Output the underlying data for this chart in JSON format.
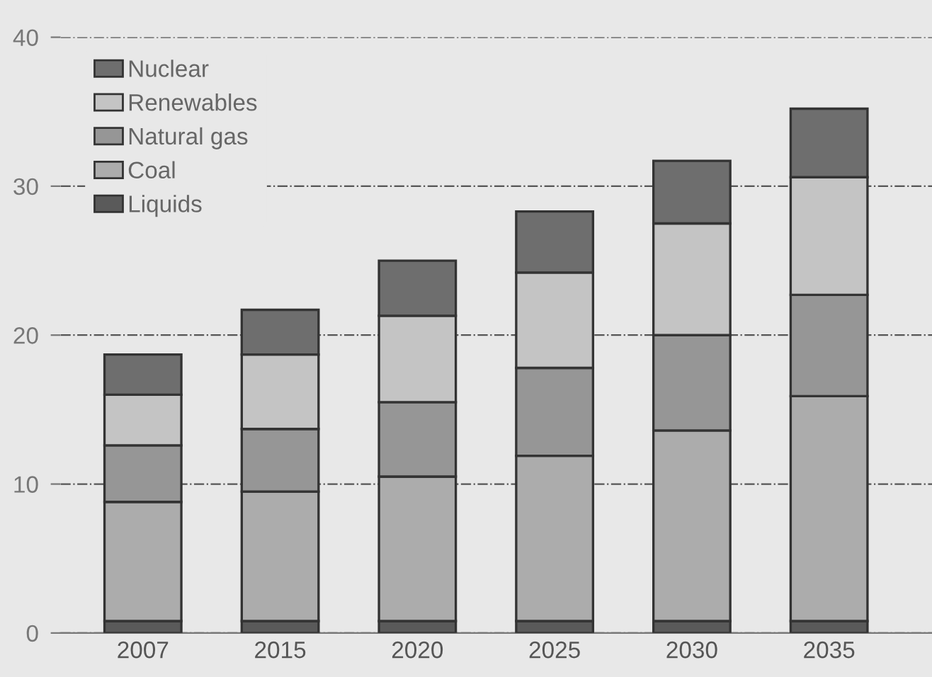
{
  "chart_data": {
    "type": "bar",
    "stacked": true,
    "categories": [
      "2007",
      "2015",
      "2020",
      "2025",
      "2030",
      "2035"
    ],
    "series": [
      {
        "name": "Liquids",
        "color": "#5a5a5a",
        "values": [
          0.8,
          0.8,
          0.8,
          0.8,
          0.8,
          0.8
        ]
      },
      {
        "name": "Coal",
        "color": "#acacac",
        "values": [
          8.0,
          8.7,
          9.7,
          11.1,
          12.8,
          15.1
        ]
      },
      {
        "name": "Natural gas",
        "color": "#969696",
        "values": [
          3.8,
          4.2,
          5.0,
          5.9,
          6.4,
          6.8
        ]
      },
      {
        "name": "Renewables",
        "color": "#c4c4c4",
        "values": [
          3.4,
          5.0,
          5.8,
          6.4,
          7.5,
          7.9
        ]
      },
      {
        "name": "Nuclear",
        "color": "#6e6e6e",
        "values": [
          2.7,
          3.0,
          3.7,
          4.1,
          4.2,
          4.6
        ]
      }
    ],
    "ylim": [
      0,
      40
    ],
    "yticks": [
      0,
      10,
      20,
      30,
      40
    ],
    "grid": "y",
    "legend": "top left"
  }
}
